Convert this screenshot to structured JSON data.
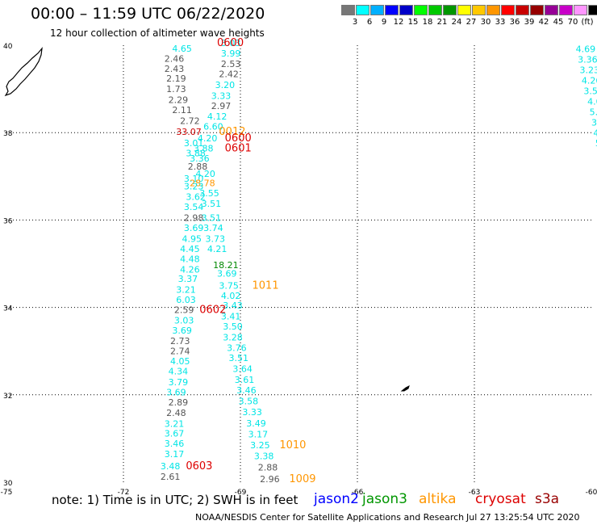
{
  "header": {
    "title": "00:00 – 11:59 UTC 06/22/2020",
    "subtitle": "12 hour collection of altimeter wave heights"
  },
  "scale": {
    "colors": [
      "#777777",
      "#00ffff",
      "#00b0ff",
      "#0000ff",
      "#0000c8",
      "#00ff00",
      "#00c800",
      "#009600",
      "#ffff00",
      "#ffc800",
      "#ff9600",
      "#ff0000",
      "#c80000",
      "#960000",
      "#960096",
      "#c800c8",
      "#ff96ff",
      "#000000"
    ],
    "labels": [
      "3",
      "6",
      "9",
      "12",
      "15",
      "18",
      "21",
      "24",
      "27",
      "30",
      "33",
      "36",
      "39",
      "42",
      "45",
      "70",
      "(ft)"
    ]
  },
  "map": {
    "x_ticks": [
      "-75",
      "-72",
      "-69",
      "-66",
      "-63",
      "-60"
    ],
    "y_ticks": [
      "40",
      "38",
      "36",
      "34",
      "32",
      "30"
    ],
    "x_range": [
      -75,
      -60
    ],
    "y_range": [
      30,
      40
    ],
    "observations": [
      {
        "t": "3.03",
        "c": "#00e5e5",
        "lon": -69.5,
        "lat": 39.98
      },
      {
        "t": "3.99",
        "c": "#00e5e5",
        "lon": -69.5,
        "lat": 39.74
      },
      {
        "t": "2.53",
        "c": "#555555",
        "lon": -69.5,
        "lat": 39.5
      },
      {
        "t": "2.42",
        "c": "#555555",
        "lon": -69.55,
        "lat": 39.27
      },
      {
        "t": "3.20",
        "c": "#00e5e5",
        "lon": -69.65,
        "lat": 39.02
      },
      {
        "t": "3.33",
        "c": "#00e5e5",
        "lon": -69.75,
        "lat": 38.77
      },
      {
        "t": "2.97",
        "c": "#555555",
        "lon": -69.75,
        "lat": 38.54
      },
      {
        "t": "4.12",
        "c": "#00e5e5",
        "lon": -69.85,
        "lat": 38.3
      },
      {
        "t": "6.60",
        "c": "#00e5e5",
        "lon": -69.95,
        "lat": 38.07
      },
      {
        "t": "4.65",
        "c": "#00e5e5",
        "lon": -70.75,
        "lat": 39.85
      },
      {
        "t": "2.46",
        "c": "#555555",
        "lon": -70.95,
        "lat": 39.62
      },
      {
        "t": "2.43",
        "c": "#555555",
        "lon": -70.95,
        "lat": 39.39
      },
      {
        "t": "2.19",
        "c": "#555555",
        "lon": -70.9,
        "lat": 39.17
      },
      {
        "t": "1.73",
        "c": "#555555",
        "lon": -70.9,
        "lat": 38.93
      },
      {
        "t": "2.29",
        "c": "#555555",
        "lon": -70.85,
        "lat": 38.68
      },
      {
        "t": "2.11",
        "c": "#555555",
        "lon": -70.75,
        "lat": 38.45
      },
      {
        "t": "2.72",
        "c": "#555555",
        "lon": -70.55,
        "lat": 38.2
      },
      {
        "t": "33.07",
        "c": "#cc0000",
        "lon": -70.65,
        "lat": 37.95
      },
      {
        "t": "0012",
        "c": "#ff9600",
        "lon": -69.55,
        "lat": 37.95
      },
      {
        "t": "0600",
        "c": "#dd0000",
        "lon": -69.6,
        "lat": 39.98
      },
      {
        "t": "0600",
        "c": "#dd0000",
        "lon": -69.4,
        "lat": 37.8
      },
      {
        "t": "0601",
        "c": "#dd0000",
        "lon": -69.4,
        "lat": 37.57
      },
      {
        "t": "4.20",
        "c": "#00e5e5",
        "lon": -70.1,
        "lat": 37.8
      },
      {
        "t": "3.01",
        "c": "#00e5e5",
        "lon": -70.45,
        "lat": 37.69
      },
      {
        "t": "3.88",
        "c": "#00e5e5",
        "lon": -70.2,
        "lat": 37.57
      },
      {
        "t": "3.88",
        "c": "#00e5e5",
        "lon": -70.4,
        "lat": 37.46
      },
      {
        "t": "3.36",
        "c": "#00e5e5",
        "lon": -70.3,
        "lat": 37.34
      },
      {
        "t": "2.88",
        "c": "#555555",
        "lon": -70.35,
        "lat": 37.15
      },
      {
        "t": "4.20",
        "c": "#00e5e5",
        "lon": -70.15,
        "lat": 36.99
      },
      {
        "t": "3.10",
        "c": "#00e5e5",
        "lon": -70.45,
        "lat": 36.88
      },
      {
        "t": "28.78",
        "c": "#ff9600",
        "lon": -70.3,
        "lat": 36.77
      },
      {
        "t": "3.23",
        "c": "#00e5e5",
        "lon": -70.45,
        "lat": 36.7
      },
      {
        "t": "3.55",
        "c": "#00e5e5",
        "lon": -70.05,
        "lat": 36.54
      },
      {
        "t": "3.62",
        "c": "#00e5e5",
        "lon": -70.4,
        "lat": 36.46
      },
      {
        "t": "3.51",
        "c": "#00e5e5",
        "lon": -70.0,
        "lat": 36.3
      },
      {
        "t": "3.54",
        "c": "#00e5e5",
        "lon": -70.45,
        "lat": 36.23
      },
      {
        "t": "2.98",
        "c": "#555555",
        "lon": -70.45,
        "lat": 35.98
      },
      {
        "t": "3.51",
        "c": "#00e5e5",
        "lon": -70.0,
        "lat": 35.98
      },
      {
        "t": "3.69",
        "c": "#00e5e5",
        "lon": -70.45,
        "lat": 35.75
      },
      {
        "t": "3.74",
        "c": "#00e5e5",
        "lon": -69.95,
        "lat": 35.75
      },
      {
        "t": "4.95",
        "c": "#00e5e5",
        "lon": -70.5,
        "lat": 35.5
      },
      {
        "t": "3.73",
        "c": "#00e5e5",
        "lon": -69.9,
        "lat": 35.5
      },
      {
        "t": "4.45",
        "c": "#00e5e5",
        "lon": -70.55,
        "lat": 35.27
      },
      {
        "t": "4.21",
        "c": "#00e5e5",
        "lon": -69.85,
        "lat": 35.27
      },
      {
        "t": "4.48",
        "c": "#00e5e5",
        "lon": -70.55,
        "lat": 35.04
      },
      {
        "t": "18.21",
        "c": "#008800",
        "lon": -69.7,
        "lat": 34.9
      },
      {
        "t": "4.26",
        "c": "#00e5e5",
        "lon": -70.55,
        "lat": 34.8
      },
      {
        "t": "3.69",
        "c": "#00e5e5",
        "lon": -69.6,
        "lat": 34.7
      },
      {
        "t": "3.37",
        "c": "#00e5e5",
        "lon": -70.6,
        "lat": 34.58
      },
      {
        "t": "3.75",
        "c": "#00e5e5",
        "lon": -69.55,
        "lat": 34.43
      },
      {
        "t": "1011",
        "c": "#ff9600",
        "lon": -68.7,
        "lat": 34.43
      },
      {
        "t": "3.21",
        "c": "#00e5e5",
        "lon": -70.65,
        "lat": 34.33
      },
      {
        "t": "4.02",
        "c": "#00e5e5",
        "lon": -69.5,
        "lat": 34.2
      },
      {
        "t": "6.03",
        "c": "#00e5e5",
        "lon": -70.65,
        "lat": 34.1
      },
      {
        "t": "3.43",
        "c": "#00e5e5",
        "lon": -69.45,
        "lat": 33.97
      },
      {
        "t": "2.59",
        "c": "#555555",
        "lon": -70.7,
        "lat": 33.87
      },
      {
        "t": "0602",
        "c": "#dd0000",
        "lon": -70.05,
        "lat": 33.87
      },
      {
        "t": "3.41",
        "c": "#00e5e5",
        "lon": -69.5,
        "lat": 33.72
      },
      {
        "t": "3.03",
        "c": "#00e5e5",
        "lon": -70.7,
        "lat": 33.63
      },
      {
        "t": "3.50",
        "c": "#00e5e5",
        "lon": -69.45,
        "lat": 33.49
      },
      {
        "t": "3.69",
        "c": "#00e5e5",
        "lon": -70.75,
        "lat": 33.4
      },
      {
        "t": "3.28",
        "c": "#00e5e5",
        "lon": -69.45,
        "lat": 33.24
      },
      {
        "t": "2.73",
        "c": "#555555",
        "lon": -70.8,
        "lat": 33.16
      },
      {
        "t": "3.76",
        "c": "#00e5e5",
        "lon": -69.35,
        "lat": 33.0
      },
      {
        "t": "2.74",
        "c": "#555555",
        "lon": -70.8,
        "lat": 32.93
      },
      {
        "t": "3.51",
        "c": "#00e5e5",
        "lon": -69.3,
        "lat": 32.77
      },
      {
        "t": "4.05",
        "c": "#00e5e5",
        "lon": -70.8,
        "lat": 32.7
      },
      {
        "t": "3.64",
        "c": "#00e5e5",
        "lon": -69.2,
        "lat": 32.52
      },
      {
        "t": "4.34",
        "c": "#00e5e5",
        "lon": -70.85,
        "lat": 32.47
      },
      {
        "t": "3.61",
        "c": "#00e5e5",
        "lon": -69.15,
        "lat": 32.27
      },
      {
        "t": "3.79",
        "c": "#00e5e5",
        "lon": -70.85,
        "lat": 32.22
      },
      {
        "t": "3.46",
        "c": "#00e5e5",
        "lon": -69.1,
        "lat": 32.03
      },
      {
        "t": "3.69",
        "c": "#00e5e5",
        "lon": -70.9,
        "lat": 31.99
      },
      {
        "t": "2.89",
        "c": "#555555",
        "lon": -70.85,
        "lat": 31.76
      },
      {
        "t": "3.58",
        "c": "#00e5e5",
        "lon": -69.05,
        "lat": 31.78
      },
      {
        "t": "2.48",
        "c": "#555555",
        "lon": -70.9,
        "lat": 31.52
      },
      {
        "t": "3.33",
        "c": "#00e5e5",
        "lon": -68.95,
        "lat": 31.53
      },
      {
        "t": "3.21",
        "c": "#00e5e5",
        "lon": -70.95,
        "lat": 31.27
      },
      {
        "t": "3.49",
        "c": "#00e5e5",
        "lon": -68.85,
        "lat": 31.28
      },
      {
        "t": "3.67",
        "c": "#00e5e5",
        "lon": -70.95,
        "lat": 31.04
      },
      {
        "t": "3.17",
        "c": "#00e5e5",
        "lon": -68.8,
        "lat": 31.03
      },
      {
        "t": "3.46",
        "c": "#00e5e5",
        "lon": -70.95,
        "lat": 30.81
      },
      {
        "t": "3.25",
        "c": "#00e5e5",
        "lon": -68.75,
        "lat": 30.78
      },
      {
        "t": "1010",
        "c": "#ff9600",
        "lon": -68.0,
        "lat": 30.78
      },
      {
        "t": "3.17",
        "c": "#00e5e5",
        "lon": -70.95,
        "lat": 30.57
      },
      {
        "t": "3.38",
        "c": "#00e5e5",
        "lon": -68.65,
        "lat": 30.53
      },
      {
        "t": "3.48",
        "c": "#00e5e5",
        "lon": -71.05,
        "lat": 30.3
      },
      {
        "t": "0603",
        "c": "#dd0000",
        "lon": -70.4,
        "lat": 30.3
      },
      {
        "t": "2.88",
        "c": "#555555",
        "lon": -68.55,
        "lat": 30.27
      },
      {
        "t": "2.61",
        "c": "#555555",
        "lon": -71.05,
        "lat": 30.06
      },
      {
        "t": "2.96",
        "c": "#555555",
        "lon": -68.5,
        "lat": 30.0
      },
      {
        "t": "1009",
        "c": "#ff9600",
        "lon": -67.75,
        "lat": 30.0
      },
      {
        "t": "4.69",
        "c": "#00e5e5",
        "lon": -60.4,
        "lat": 39.84
      },
      {
        "t": "3.36",
        "c": "#00e5e5",
        "lon": -60.35,
        "lat": 39.6
      },
      {
        "t": "3.23",
        "c": "#00e5e5",
        "lon": -60.3,
        "lat": 39.36
      },
      {
        "t": "4.26",
        "c": "#00e5e5",
        "lon": -60.25,
        "lat": 39.12
      },
      {
        "t": "3.56",
        "c": "#00e5e5",
        "lon": -60.2,
        "lat": 38.88
      },
      {
        "t": "4.02",
        "c": "#00e5e5",
        "lon": -60.1,
        "lat": 38.64
      },
      {
        "t": "5.16",
        "c": "#00e5e5",
        "lon": -60.05,
        "lat": 38.4
      },
      {
        "t": "3.0",
        "c": "#00e5e5",
        "lon": -60.0,
        "lat": 38.16
      },
      {
        "t": "4.3",
        "c": "#00e5e5",
        "lon": -59.95,
        "lat": 37.92
      },
      {
        "t": "5.",
        "c": "#00e5e5",
        "lon": -59.9,
        "lat": 37.69
      },
      {
        "t": "5",
        "c": "#00e5e5",
        "lon": -59.85,
        "lat": 37.46
      },
      {
        "t": "5",
        "c": "#00e5e5",
        "lon": -59.8,
        "lat": 37.23
      }
    ]
  },
  "note": "note: 1) Time is in UTC; 2) SWH is in feet",
  "legend": [
    {
      "label": "jason2",
      "color": "#0000ff"
    },
    {
      "label": "jason3",
      "color": "#009600"
    },
    {
      "label": "altika",
      "color": "#ff9600"
    },
    {
      "label": "cryosat",
      "color": "#dd0000"
    },
    {
      "label": "s3a",
      "color": "#990000"
    }
  ],
  "credit": "NOAA/NESDIS Center for Satellite Applications and Research",
  "timestamp": "Jul 27 13:25:54 UTC 2020"
}
